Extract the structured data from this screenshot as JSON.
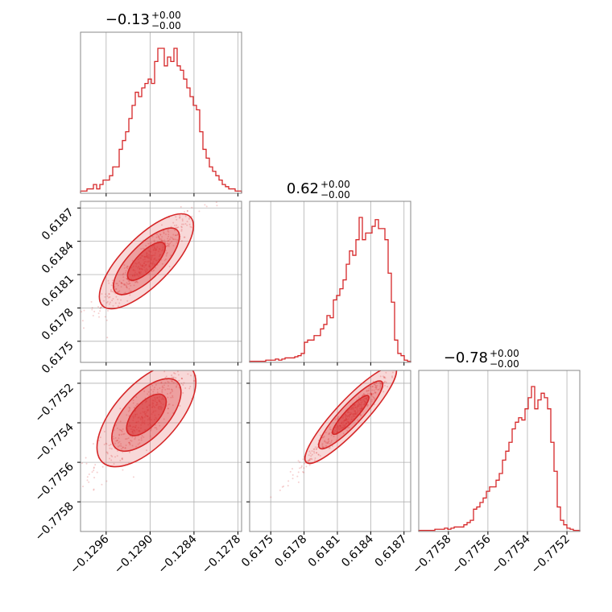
{
  "chart_data": {
    "type": "corner",
    "color": "#d62728",
    "parameters": [
      {
        "title": {
          "main": "−0.13",
          "upper": "+0.00",
          "lower": "−0.00"
        },
        "range": [
          -0.12995,
          -0.12775
        ],
        "ticks": [
          -0.1296,
          -0.129,
          -0.1284,
          -0.1278
        ],
        "tick_labels": [
          "−0.1296",
          "−0.1290",
          "−0.1284",
          "−0.1278"
        ],
        "hist": [
          1,
          1,
          2,
          2,
          4,
          2,
          4,
          6,
          6,
          8,
          12,
          12,
          20,
          24,
          28,
          34,
          40,
          46,
          44,
          48,
          50,
          52,
          50,
          60,
          66,
          66,
          58,
          62,
          60,
          66,
          58,
          56,
          52,
          48,
          44,
          40,
          38,
          28,
          20,
          16,
          12,
          10,
          8,
          6,
          4,
          3,
          2,
          2,
          1,
          1
        ]
      },
      {
        "title": {
          "main": "0.62",
          "upper": "+0.00",
          "lower": "−0.00"
        },
        "range": [
          0.61731,
          0.61876
        ],
        "ticks": [
          0.6175,
          0.6178,
          0.6181,
          0.6184,
          0.6187
        ],
        "tick_labels": [
          "0.6175",
          "0.6178",
          "0.6181",
          "0.6184",
          "0.6187"
        ],
        "hist": [
          1,
          1,
          1,
          1,
          1,
          2,
          2,
          2,
          3,
          2,
          3,
          4,
          4,
          4,
          5,
          6,
          8,
          18,
          20,
          20,
          24,
          24,
          30,
          34,
          42,
          40,
          56,
          60,
          66,
          74,
          88,
          100,
          96,
          110,
          130,
          110,
          116,
          116,
          122,
          128,
          120,
          120,
          110,
          80,
          54,
          20,
          8,
          6,
          2,
          1
        ]
      },
      {
        "title": {
          "main": "−0.78",
          "upper": "+0.00",
          "lower": "−0.00"
        },
        "range": [
          -0.77595,
          -0.775135
        ],
        "ticks": [
          -0.7758,
          -0.7756,
          -0.7754,
          -0.7752
        ],
        "tick_labels": [
          "−0.7758",
          "−0.7756",
          "−0.7754",
          "−0.7752"
        ],
        "hist": [
          1,
          1,
          1,
          1,
          1,
          2,
          2,
          2,
          3,
          2,
          3,
          4,
          4,
          4,
          6,
          8,
          10,
          20,
          22,
          26,
          30,
          36,
          40,
          40,
          46,
          52,
          64,
          72,
          80,
          92,
          98,
          102,
          100,
          110,
          120,
          130,
          110,
          118,
          124,
          120,
          110,
          80,
          54,
          22,
          10,
          6,
          3,
          2,
          1,
          1
        ]
      }
    ],
    "axis_ticks_y": {
      "row1": {
        "ticks": [
          0.6175,
          0.6178,
          0.6181,
          0.6184,
          0.6187
        ],
        "labels": [
          "0.6175",
          "0.6178",
          "0.6181",
          "0.6184",
          "0.6187"
        ]
      },
      "row2": {
        "ticks": [
          -0.7758,
          -0.7756,
          -0.7754,
          -0.7752
        ],
        "labels": [
          "−0.7758",
          "−0.7756",
          "−0.7754",
          "−0.7752"
        ]
      }
    },
    "grid": true
  }
}
